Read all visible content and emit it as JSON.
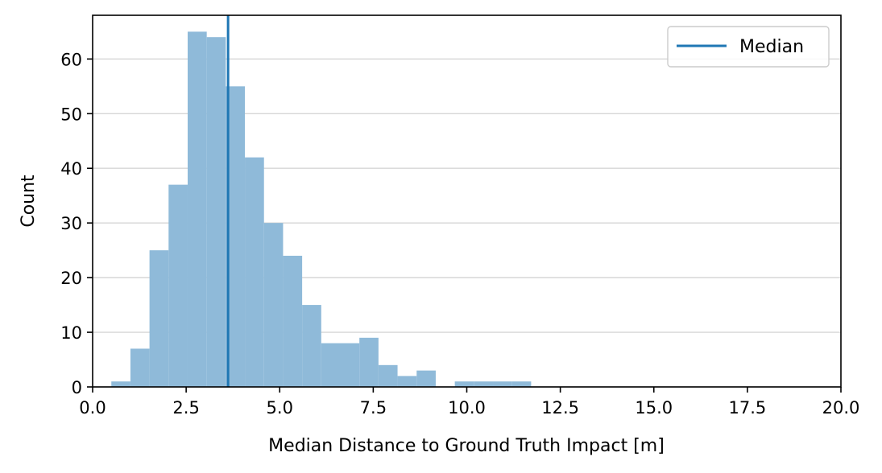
{
  "chart_data": {
    "type": "bar",
    "subtype": "histogram",
    "title": "",
    "xlabel": "Median Distance to Ground Truth Impact [m]",
    "ylabel": "Count",
    "xlim": [
      0,
      20
    ],
    "ylim": [
      0,
      68
    ],
    "xticks": [
      "0.0",
      "2.5",
      "5.0",
      "7.5",
      "10.0",
      "12.5",
      "15.0",
      "17.5",
      "20.0"
    ],
    "yticks": [
      "0",
      "10",
      "20",
      "30",
      "40",
      "50",
      "60"
    ],
    "grid": "horizontal",
    "bar_color": "#8fbad9",
    "bins": [
      {
        "x0": 0.5,
        "x1": 1.01,
        "count": 1
      },
      {
        "x0": 1.01,
        "x1": 1.52,
        "count": 7
      },
      {
        "x0": 1.52,
        "x1": 2.03,
        "count": 25
      },
      {
        "x0": 2.03,
        "x1": 2.54,
        "count": 37
      },
      {
        "x0": 2.54,
        "x1": 3.05,
        "count": 65
      },
      {
        "x0": 3.05,
        "x1": 3.56,
        "count": 64
      },
      {
        "x0": 3.56,
        "x1": 4.07,
        "count": 55
      },
      {
        "x0": 4.07,
        "x1": 4.58,
        "count": 42
      },
      {
        "x0": 4.58,
        "x1": 5.09,
        "count": 30
      },
      {
        "x0": 5.09,
        "x1": 5.6,
        "count": 24
      },
      {
        "x0": 5.6,
        "x1": 6.11,
        "count": 15
      },
      {
        "x0": 6.11,
        "x1": 6.62,
        "count": 8
      },
      {
        "x0": 6.62,
        "x1": 7.13,
        "count": 8
      },
      {
        "x0": 7.13,
        "x1": 7.64,
        "count": 9
      },
      {
        "x0": 7.64,
        "x1": 8.15,
        "count": 4
      },
      {
        "x0": 8.15,
        "x1": 8.66,
        "count": 2
      },
      {
        "x0": 8.66,
        "x1": 9.17,
        "count": 3
      },
      {
        "x0": 9.17,
        "x1": 9.68,
        "count": 0
      },
      {
        "x0": 9.68,
        "x1": 10.19,
        "count": 1
      },
      {
        "x0": 10.19,
        "x1": 10.7,
        "count": 1
      },
      {
        "x0": 10.7,
        "x1": 11.21,
        "count": 1
      },
      {
        "x0": 11.21,
        "x1": 11.72,
        "count": 1
      }
    ],
    "median": {
      "name": "Median",
      "value": 3.62,
      "color": "#1f77b4"
    },
    "legend": {
      "position": "top-right",
      "entries": [
        "Median"
      ]
    }
  }
}
